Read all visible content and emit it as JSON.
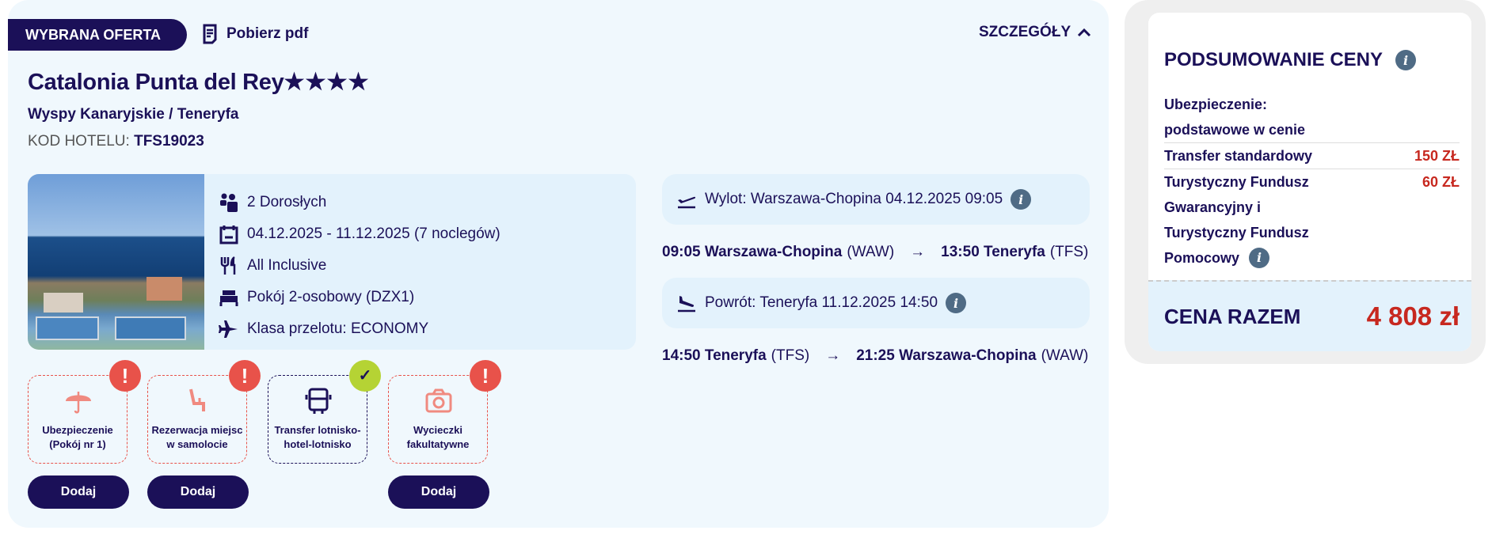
{
  "header": {
    "badge": "WYBRANA OFERTA",
    "pdf": "Pobierz pdf",
    "details": "SZCZEGÓŁY"
  },
  "hotel": {
    "name": "Catalonia Punta del Rey",
    "stars": "★★★★",
    "star_rating": 4,
    "location": "Wyspy Kanaryjskie / Teneryfa",
    "code_label": "KOD HOTELU:",
    "code": "TFS19023"
  },
  "info": [
    {
      "icon": "people-icon",
      "text": "2 Dorosłych"
    },
    {
      "icon": "calendar-icon",
      "text": "04.12.2025 - 11.12.2025 (7 noclegów)"
    },
    {
      "icon": "cutlery-icon",
      "text": "All Inclusive"
    },
    {
      "icon": "bed-icon",
      "text": "Pokój 2-osobowy (DZX1)"
    },
    {
      "icon": "plane-icon",
      "text": "Klasa przelotu: ECONOMY"
    }
  ],
  "flights": {
    "out": {
      "label": "Wylot: Warszawa-Chopina 04.12.2025 09:05",
      "dep": "09:05 Warszawa-Chopina",
      "dep_code": "(WAW)",
      "arr": "13:50 Teneryfa",
      "arr_code": "(TFS)"
    },
    "back": {
      "label": "Powrót: Teneryfa 11.12.2025 14:50",
      "dep": "14:50 Teneryfa",
      "dep_code": "(TFS)",
      "arr": "21:25 Warszawa-Chopina",
      "arr_code": "(WAW)"
    }
  },
  "extras": [
    {
      "label": "Ubezpieczenie (Pokój nr 1)",
      "status": "!",
      "button": "Dodaj"
    },
    {
      "label": "Rezerwacja miejsc w samolocie",
      "status": "!",
      "button": "Dodaj"
    },
    {
      "label": "Transfer lotnisko-hotel-lotnisko",
      "status": "✓"
    },
    {
      "label": "Wycieczki fakultatywne",
      "status": "!",
      "button": "Dodaj"
    }
  ],
  "summary": {
    "title": "PODSUMOWANIE CENY",
    "ins1": "Ubezpieczenie:",
    "ins2": "podstawowe w cenie",
    "transfer": "Transfer standardowy",
    "transfer_price": "150 ZŁ",
    "fund1": "Turystyczny Fundusz",
    "fund2": "Gwarancyjny i",
    "fund3": "Turystyczny Fundusz",
    "fund4": "Pomocowy",
    "fund_price": "60 ZŁ",
    "total_label": "CENA RAZEM",
    "total": "4 808 zł"
  },
  "colors": {
    "navy": "#1b1058",
    "alert": "#e8524a",
    "ok": "#b5d334",
    "price": "#c7281f"
  }
}
